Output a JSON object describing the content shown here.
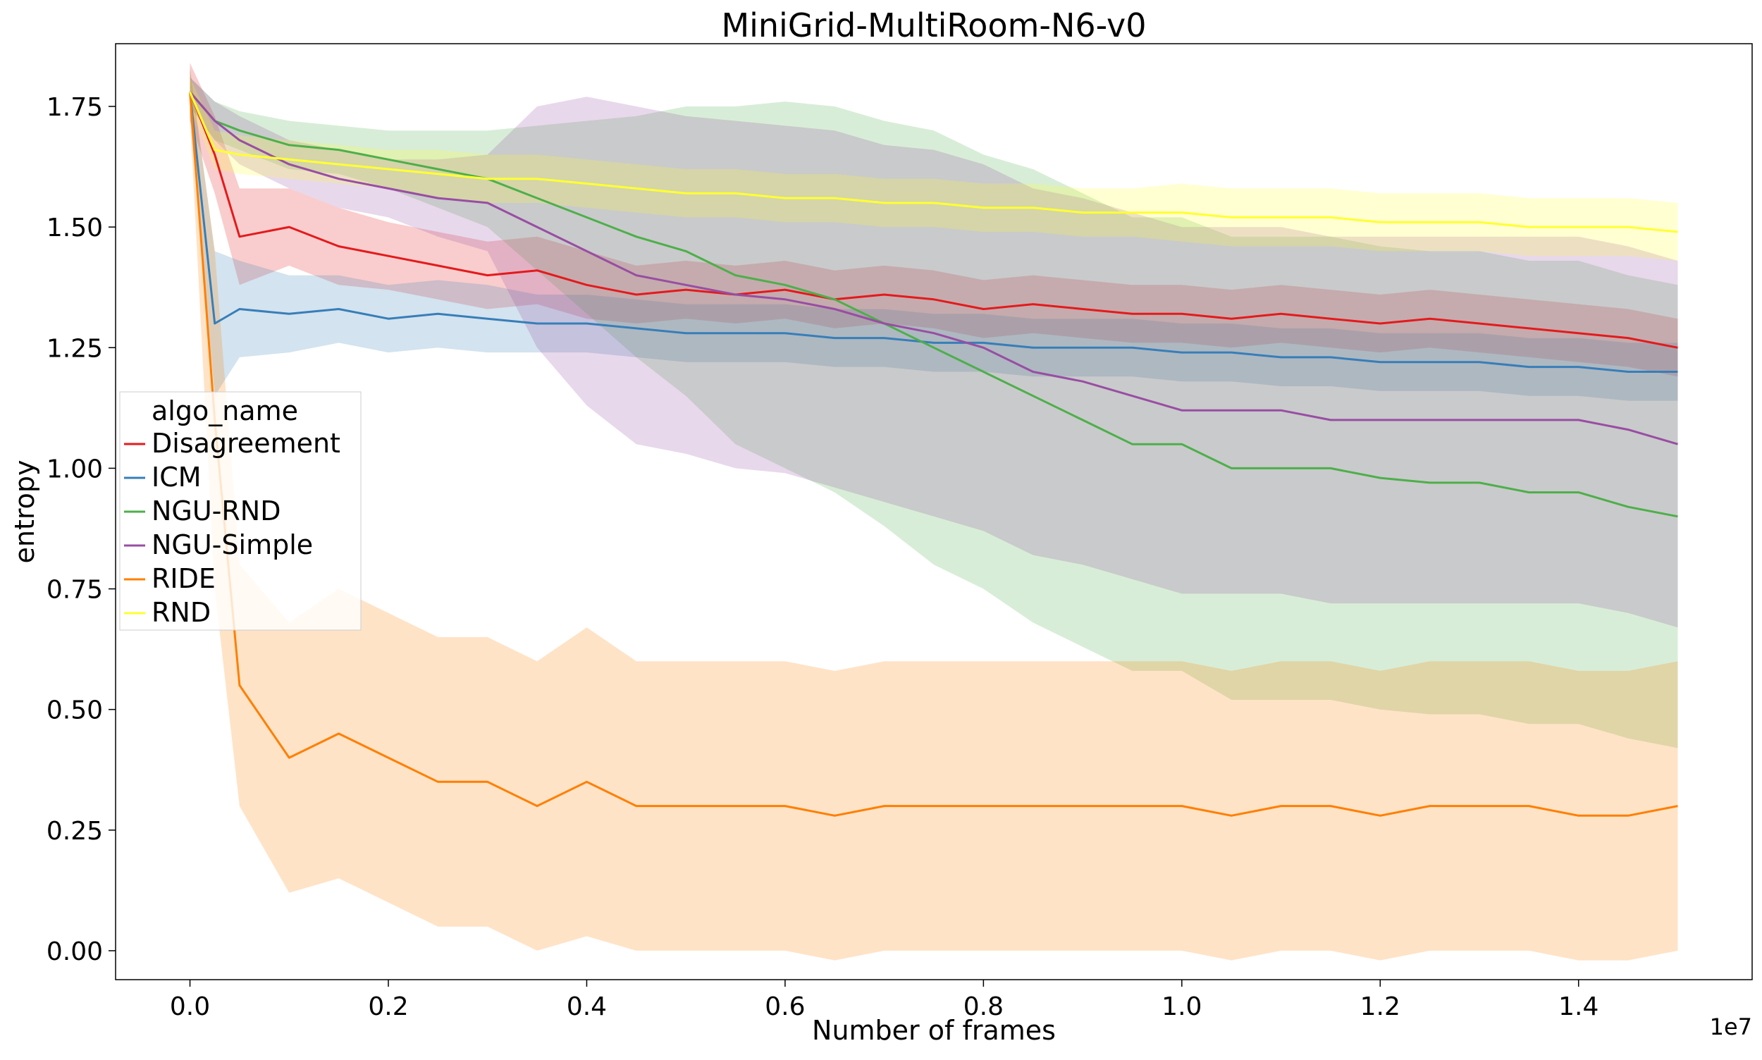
{
  "chart_data": {
    "type": "line",
    "title": "MiniGrid-MultiRoom-N6-v0",
    "xlabel": "Number of frames",
    "ylabel": "entropy",
    "x_offset_label": "1e7",
    "x_scale": 10000000,
    "xlim": [
      -0.075,
      1.575
    ],
    "ylim": [
      -0.06,
      1.88
    ],
    "x_ticks": [
      0.0,
      0.2,
      0.4,
      0.6,
      0.8,
      1.0,
      1.2,
      1.4
    ],
    "x_tick_labels": [
      "0.0",
      "0.2",
      "0.4",
      "0.6",
      "0.8",
      "1.0",
      "1.2",
      "1.4"
    ],
    "y_ticks": [
      0.0,
      0.25,
      0.5,
      0.75,
      1.0,
      1.25,
      1.5,
      1.75
    ],
    "y_tick_labels": [
      "0.00",
      "0.25",
      "0.50",
      "0.75",
      "1.00",
      "1.25",
      "1.50",
      "1.75"
    ],
    "grid": false,
    "legend": {
      "title": "algo_name",
      "placement": "center-left"
    },
    "x": [
      0.0,
      0.025,
      0.05,
      0.1,
      0.15,
      0.2,
      0.25,
      0.3,
      0.35,
      0.4,
      0.45,
      0.5,
      0.55,
      0.6,
      0.65,
      0.7,
      0.75,
      0.8,
      0.85,
      0.9,
      0.95,
      1.0,
      1.05,
      1.1,
      1.15,
      1.2,
      1.25,
      1.3,
      1.35,
      1.4,
      1.45,
      1.5
    ],
    "series": [
      {
        "name": "Disagreement",
        "color": "#e41a1c",
        "values": [
          1.78,
          1.65,
          1.48,
          1.5,
          1.46,
          1.44,
          1.42,
          1.4,
          1.41,
          1.38,
          1.36,
          1.37,
          1.36,
          1.37,
          1.35,
          1.36,
          1.35,
          1.33,
          1.34,
          1.33,
          1.32,
          1.32,
          1.31,
          1.32,
          1.31,
          1.3,
          1.31,
          1.3,
          1.29,
          1.28,
          1.27,
          1.25
        ],
        "band": [
          0.06,
          0.08,
          0.1,
          0.08,
          0.08,
          0.07,
          0.07,
          0.07,
          0.07,
          0.07,
          0.06,
          0.06,
          0.06,
          0.06,
          0.06,
          0.06,
          0.06,
          0.06,
          0.06,
          0.06,
          0.06,
          0.06,
          0.06,
          0.06,
          0.06,
          0.06,
          0.06,
          0.06,
          0.06,
          0.06,
          0.06,
          0.06
        ]
      },
      {
        "name": "ICM",
        "color": "#377eb8",
        "values": [
          1.78,
          1.3,
          1.33,
          1.32,
          1.33,
          1.31,
          1.32,
          1.31,
          1.3,
          1.3,
          1.29,
          1.28,
          1.28,
          1.28,
          1.27,
          1.27,
          1.26,
          1.26,
          1.25,
          1.25,
          1.25,
          1.24,
          1.24,
          1.23,
          1.23,
          1.22,
          1.22,
          1.22,
          1.21,
          1.21,
          1.2,
          1.2
        ],
        "band": [
          0.05,
          0.15,
          0.1,
          0.08,
          0.07,
          0.07,
          0.07,
          0.07,
          0.06,
          0.06,
          0.06,
          0.06,
          0.06,
          0.06,
          0.06,
          0.06,
          0.06,
          0.06,
          0.06,
          0.06,
          0.06,
          0.06,
          0.06,
          0.06,
          0.06,
          0.06,
          0.06,
          0.06,
          0.06,
          0.06,
          0.06,
          0.06
        ]
      },
      {
        "name": "NGU-RND",
        "color": "#4daf4a",
        "values": [
          1.78,
          1.72,
          1.7,
          1.67,
          1.66,
          1.64,
          1.62,
          1.6,
          1.56,
          1.52,
          1.48,
          1.45,
          1.4,
          1.38,
          1.35,
          1.3,
          1.25,
          1.2,
          1.15,
          1.1,
          1.05,
          1.05,
          1.0,
          1.0,
          1.0,
          0.98,
          0.97,
          0.97,
          0.95,
          0.95,
          0.92,
          0.9
        ],
        "band": [
          0.03,
          0.04,
          0.04,
          0.05,
          0.05,
          0.06,
          0.08,
          0.1,
          0.15,
          0.2,
          0.25,
          0.3,
          0.35,
          0.38,
          0.4,
          0.42,
          0.45,
          0.45,
          0.47,
          0.47,
          0.47,
          0.47,
          0.48,
          0.48,
          0.48,
          0.48,
          0.48,
          0.48,
          0.48,
          0.48,
          0.48,
          0.48
        ]
      },
      {
        "name": "NGU-Simple",
        "color": "#984ea3",
        "values": [
          1.78,
          1.72,
          1.68,
          1.63,
          1.6,
          1.58,
          1.56,
          1.55,
          1.5,
          1.45,
          1.4,
          1.38,
          1.36,
          1.35,
          1.33,
          1.3,
          1.28,
          1.25,
          1.2,
          1.18,
          1.15,
          1.12,
          1.12,
          1.12,
          1.1,
          1.1,
          1.1,
          1.1,
          1.1,
          1.1,
          1.08,
          1.05
        ],
        "band": [
          0.03,
          0.04,
          0.05,
          0.05,
          0.06,
          0.06,
          0.08,
          0.1,
          0.25,
          0.32,
          0.35,
          0.35,
          0.36,
          0.36,
          0.37,
          0.37,
          0.38,
          0.38,
          0.38,
          0.38,
          0.38,
          0.38,
          0.38,
          0.38,
          0.38,
          0.38,
          0.38,
          0.38,
          0.38,
          0.38,
          0.38,
          0.38
        ]
      },
      {
        "name": "RIDE",
        "color": "#ff7f00",
        "values": [
          1.78,
          1.1,
          0.55,
          0.4,
          0.45,
          0.4,
          0.35,
          0.35,
          0.3,
          0.35,
          0.3,
          0.3,
          0.3,
          0.3,
          0.28,
          0.3,
          0.3,
          0.3,
          0.3,
          0.3,
          0.3,
          0.3,
          0.28,
          0.3,
          0.3,
          0.28,
          0.3,
          0.3,
          0.3,
          0.28,
          0.28,
          0.3
        ],
        "band": [
          0.05,
          0.35,
          0.25,
          0.28,
          0.3,
          0.3,
          0.3,
          0.3,
          0.3,
          0.32,
          0.3,
          0.3,
          0.3,
          0.3,
          0.3,
          0.3,
          0.3,
          0.3,
          0.3,
          0.3,
          0.3,
          0.3,
          0.3,
          0.3,
          0.3,
          0.3,
          0.3,
          0.3,
          0.3,
          0.3,
          0.3,
          0.3
        ]
      },
      {
        "name": "RND",
        "color": "#ffff33",
        "values": [
          1.78,
          1.66,
          1.65,
          1.64,
          1.63,
          1.62,
          1.61,
          1.6,
          1.6,
          1.59,
          1.58,
          1.57,
          1.57,
          1.56,
          1.56,
          1.55,
          1.55,
          1.54,
          1.54,
          1.53,
          1.53,
          1.53,
          1.52,
          1.52,
          1.52,
          1.51,
          1.51,
          1.51,
          1.5,
          1.5,
          1.5,
          1.49
        ],
        "band": [
          0.03,
          0.04,
          0.04,
          0.04,
          0.04,
          0.04,
          0.05,
          0.05,
          0.05,
          0.05,
          0.05,
          0.05,
          0.05,
          0.05,
          0.05,
          0.05,
          0.05,
          0.05,
          0.05,
          0.05,
          0.05,
          0.06,
          0.06,
          0.06,
          0.06,
          0.06,
          0.06,
          0.06,
          0.06,
          0.06,
          0.06,
          0.06
        ]
      }
    ]
  }
}
